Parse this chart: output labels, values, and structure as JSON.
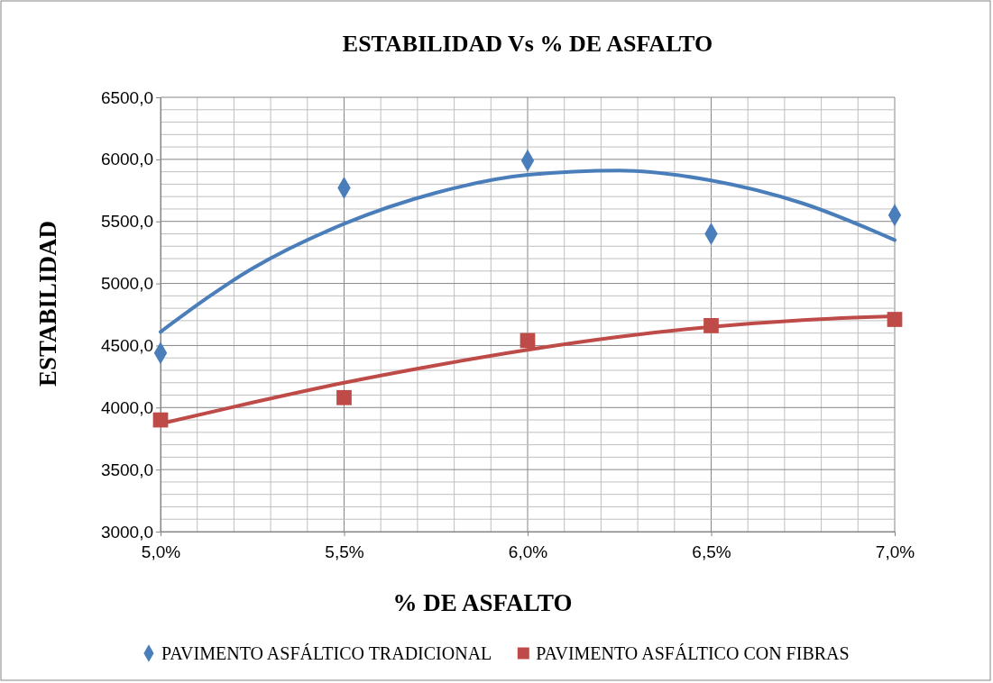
{
  "chart_data": {
    "type": "scatter",
    "title": "ESTABILIDAD Vs % DE ASFALTO",
    "xlabel": "% DE ASFALTO",
    "ylabel": "ESTABILIDAD",
    "x": [
      5.0,
      5.5,
      6.0,
      6.5,
      7.0
    ],
    "xlim": [
      5.0,
      7.0
    ],
    "xticks": [
      {
        "value": 5.0,
        "label": "5,0%"
      },
      {
        "value": 5.5,
        "label": "5,5%"
      },
      {
        "value": 6.0,
        "label": "6,0%"
      },
      {
        "value": 6.5,
        "label": "6,5%"
      },
      {
        "value": 7.0,
        "label": "7,0%"
      }
    ],
    "ylim": [
      3000,
      6500
    ],
    "yticks": [
      {
        "value": 3000,
        "label": "3000,0"
      },
      {
        "value": 3500,
        "label": "3500,0"
      },
      {
        "value": 4000,
        "label": "4000,0"
      },
      {
        "value": 4500,
        "label": "4500,0"
      },
      {
        "value": 5000,
        "label": "5000,0"
      },
      {
        "value": 5500,
        "label": "5500,0"
      },
      {
        "value": 6000,
        "label": "6000,0"
      },
      {
        "value": 6500,
        "label": "6500,0"
      }
    ],
    "grid": true,
    "legend": "bottom",
    "series": [
      {
        "name": "PAVIMENTO ASFÁLTICO TRADICIONAL",
        "color": "#4a7ebb",
        "marker": "diamond",
        "values": [
          4440,
          5770,
          5990,
          5400,
          5550
        ]
      },
      {
        "name": "PAVIMENTO ASFÁLTICO CON FIBRAS",
        "color": "#be4b48",
        "marker": "square",
        "values": [
          3900,
          4080,
          4540,
          4660,
          4710
        ]
      },
      {
        "type": "line",
        "color": "#4a7ebb",
        "x": [
          5.0,
          5.25,
          5.5,
          5.75,
          6.0,
          6.25,
          6.5,
          6.75,
          7.0
        ],
        "values": [
          4610,
          5120,
          5480,
          5730,
          5875,
          5910,
          5830,
          5645,
          5350
        ]
      },
      {
        "type": "line",
        "color": "#be4b48",
        "x": [
          5.0,
          5.25,
          5.5,
          5.75,
          6.0,
          6.25,
          6.5,
          6.75,
          7.0
        ],
        "values": [
          3870,
          4040,
          4200,
          4340,
          4465,
          4570,
          4650,
          4705,
          4735
        ]
      }
    ]
  }
}
